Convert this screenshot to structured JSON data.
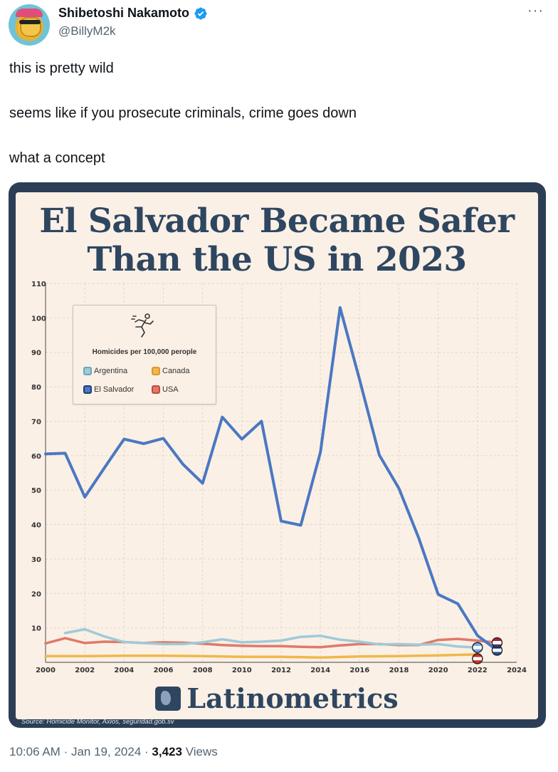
{
  "tweet": {
    "display_name": "Shibetoshi Nakamoto",
    "handle": "@BillyM2k",
    "verified": true,
    "more_icon": "more-horizontal-icon",
    "lines": [
      "this is pretty wild",
      "seems like if you prosecute criminals, crime goes down",
      "what a concept"
    ],
    "time": "10:06 AM",
    "separator": "·",
    "date": "Jan 19, 2024",
    "views_count": "3,423",
    "views_label": "Views"
  },
  "media": {
    "brand_name": "Latinometrics",
    "source_text": "Source:  Homicide Monitor, Axios, seguridad.gob.sv"
  },
  "chart_data": {
    "type": "line",
    "title": "El Salvador Became Safer Than the US in 2023",
    "title_lines": [
      "El Salvador Became Safer",
      "Than the US in 2023"
    ],
    "legend_title": "Homicides per 100,000 perople",
    "legend_placement": "top-left",
    "grid": true,
    "xlim": [
      2000,
      2024
    ],
    "ylim": [
      0,
      110
    ],
    "xticks": [
      2000,
      2002,
      2004,
      2006,
      2008,
      2010,
      2012,
      2014,
      2016,
      2018,
      2020,
      2022,
      2024
    ],
    "yticks": [
      10,
      20,
      30,
      40,
      50,
      60,
      70,
      80,
      90,
      100,
      110
    ],
    "series": [
      {
        "name": "El Salvador",
        "color": "#4a78c2",
        "points": [
          [
            2000,
            60.5
          ],
          [
            2001,
            60.7
          ],
          [
            2002,
            48
          ],
          [
            2003,
            56.5
          ],
          [
            2004,
            64.8
          ],
          [
            2005,
            63.5
          ],
          [
            2006,
            65
          ],
          [
            2007,
            57.5
          ],
          [
            2008,
            52
          ],
          [
            2009,
            71.2
          ],
          [
            2010,
            64.8
          ],
          [
            2011,
            70
          ],
          [
            2012,
            41
          ],
          [
            2013,
            39.8
          ],
          [
            2014,
            61
          ],
          [
            2015,
            103
          ],
          [
            2016,
            82
          ],
          [
            2017,
            60.2
          ],
          [
            2018,
            50.5
          ],
          [
            2019,
            36.2
          ],
          [
            2020,
            19.7
          ],
          [
            2021,
            17
          ],
          [
            2022,
            7.8
          ],
          [
            2023,
            3.5
          ]
        ]
      },
      {
        "name": "Argentina",
        "color": "#9fcad8",
        "points": [
          [
            2001,
            8.5
          ],
          [
            2002,
            9.6
          ],
          [
            2003,
            7.5
          ],
          [
            2004,
            5.9
          ],
          [
            2005,
            5.6
          ],
          [
            2006,
            5.3
          ],
          [
            2007,
            5.3
          ],
          [
            2008,
            5.8
          ],
          [
            2009,
            6.7
          ],
          [
            2010,
            5.8
          ],
          [
            2011,
            6.0
          ],
          [
            2012,
            6.3
          ],
          [
            2013,
            7.4
          ],
          [
            2014,
            7.7
          ],
          [
            2015,
            6.6
          ],
          [
            2016,
            6.0
          ],
          [
            2017,
            5.2
          ],
          [
            2018,
            5.3
          ],
          [
            2019,
            5.1
          ],
          [
            2020,
            5.3
          ],
          [
            2021,
            4.6
          ],
          [
            2022,
            4.3
          ]
        ]
      },
      {
        "name": "USA",
        "color": "#e0796a",
        "points": [
          [
            2000,
            5.5
          ],
          [
            2001,
            7.0
          ],
          [
            2002,
            5.6
          ],
          [
            2003,
            6.0
          ],
          [
            2004,
            5.9
          ],
          [
            2005,
            5.6
          ],
          [
            2006,
            5.8
          ],
          [
            2007,
            5.7
          ],
          [
            2008,
            5.4
          ],
          [
            2009,
            5.0
          ],
          [
            2010,
            4.8
          ],
          [
            2011,
            4.7
          ],
          [
            2012,
            4.7
          ],
          [
            2013,
            4.5
          ],
          [
            2014,
            4.4
          ],
          [
            2015,
            4.9
          ],
          [
            2016,
            5.3
          ],
          [
            2017,
            5.3
          ],
          [
            2018,
            5.0
          ],
          [
            2019,
            5.0
          ],
          [
            2020,
            6.5
          ],
          [
            2021,
            6.8
          ],
          [
            2022,
            6.3
          ],
          [
            2023,
            5.7
          ]
        ]
      },
      {
        "name": "Canada",
        "color": "#f0b84a",
        "points": [
          [
            2000,
            1.8
          ],
          [
            2002,
            1.8
          ],
          [
            2004,
            1.9
          ],
          [
            2006,
            1.9
          ],
          [
            2008,
            1.8
          ],
          [
            2010,
            1.6
          ],
          [
            2012,
            1.6
          ],
          [
            2014,
            1.4
          ],
          [
            2016,
            1.7
          ],
          [
            2018,
            1.8
          ],
          [
            2020,
            2.0
          ],
          [
            2022,
            2.3
          ]
        ]
      }
    ],
    "legend_order": [
      "Argentina",
      "Canada",
      "El Salvador",
      "USA"
    ]
  }
}
